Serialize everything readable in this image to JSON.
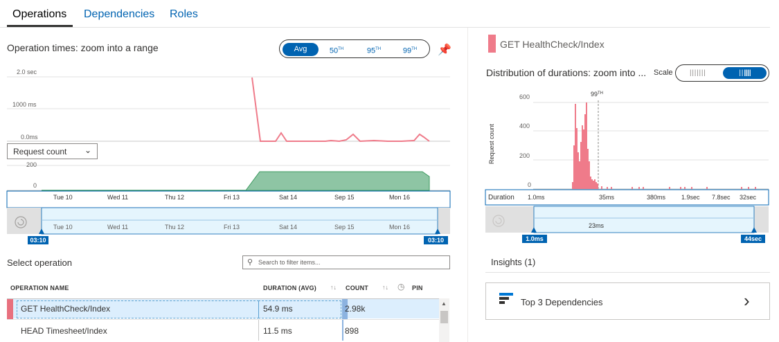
{
  "tabs": [
    {
      "label": "Operations"
    },
    {
      "label": "Dependencies"
    },
    {
      "label": "Roles"
    }
  ],
  "operation_times": {
    "title": "Operation times: zoom into a range",
    "percentiles": [
      "Avg",
      "50",
      "95",
      "99"
    ],
    "percentile_suffix": "TH",
    "selected_percentile": "Avg",
    "y_labels": [
      "2.0 sec",
      "1000 ms",
      "0.0ms"
    ],
    "count_y_labels": [
      "200",
      "0"
    ],
    "metric_dropdown": "Request count",
    "x_labels": [
      "Tue 10",
      "Wed 11",
      "Thu 12",
      "Fri 13",
      "Sat 14",
      "Sep 15",
      "Mon 16"
    ],
    "range_start": "03:10",
    "range_end": "03:10",
    "line_color": "#ef7b8a",
    "area_color": "#8ec5a4"
  },
  "chart_data": [
    {
      "type": "line",
      "title": "Operation times: zoom into a range",
      "ylabel": "",
      "ylim": [
        0,
        2000
      ],
      "y_unit": "ms",
      "x": [
        "Fri 13",
        "Sat 14 (start)",
        "Sat 14",
        "Sat 14",
        "Sep 15",
        "Sep 15",
        "Mon 16",
        "Mon 16"
      ],
      "values": [
        2000,
        0,
        0,
        200,
        0,
        0,
        150,
        0
      ]
    },
    {
      "type": "area",
      "title": "",
      "series_label": "Request count",
      "ylim": [
        0,
        200
      ],
      "x": [
        "Tue 10",
        "Wed 11",
        "Thu 12",
        "Fri 13",
        "Sat 14",
        "Sep 15",
        "Mon 16"
      ],
      "values": [
        0,
        0,
        0,
        0,
        150,
        150,
        150
      ]
    },
    {
      "type": "bar",
      "title": "Distribution of durations",
      "ylabel": "Request count",
      "ylim": [
        0,
        700
      ],
      "x_labels": [
        "1.0ms",
        "35ms",
        "380ms",
        "1.9sec",
        "7.8sec",
        "32sec"
      ],
      "marker": "99TH"
    }
  ],
  "select_operation": {
    "label": "Select operation",
    "search_placeholder": "Search to filter items..."
  },
  "table": {
    "headers": {
      "name": "OPERATION NAME",
      "duration": "DURATION (AVG)",
      "count": "COUNT",
      "pin": "PIN"
    },
    "rows": [
      {
        "name": "GET HealthCheck/Index",
        "duration": "54.9 ms",
        "count": "2.98k",
        "color": "#e8707e"
      },
      {
        "name": "HEAD Timesheet/Index",
        "duration": "11.5 ms",
        "count": "898"
      }
    ]
  },
  "detail": {
    "operation": "GET HealthCheck/Index",
    "distribution_title": "Distribution of durations: zoom into ...",
    "scale_label": "Scale",
    "y_labels": [
      "600",
      "400",
      "200",
      "0"
    ],
    "y_axis_label": "Request count",
    "marker_label": "99",
    "marker_suffix": "TH",
    "duration_label": "Duration",
    "x_labels": [
      "1.0ms",
      "35ms",
      "380ms",
      "1.9sec",
      "7.8sec",
      "32sec"
    ],
    "range_mid": "23ms",
    "range_start": "1.0ms",
    "range_end": "44sec"
  },
  "insights": {
    "title": "Insights (1)",
    "card_label": "Top 3 Dependencies"
  }
}
